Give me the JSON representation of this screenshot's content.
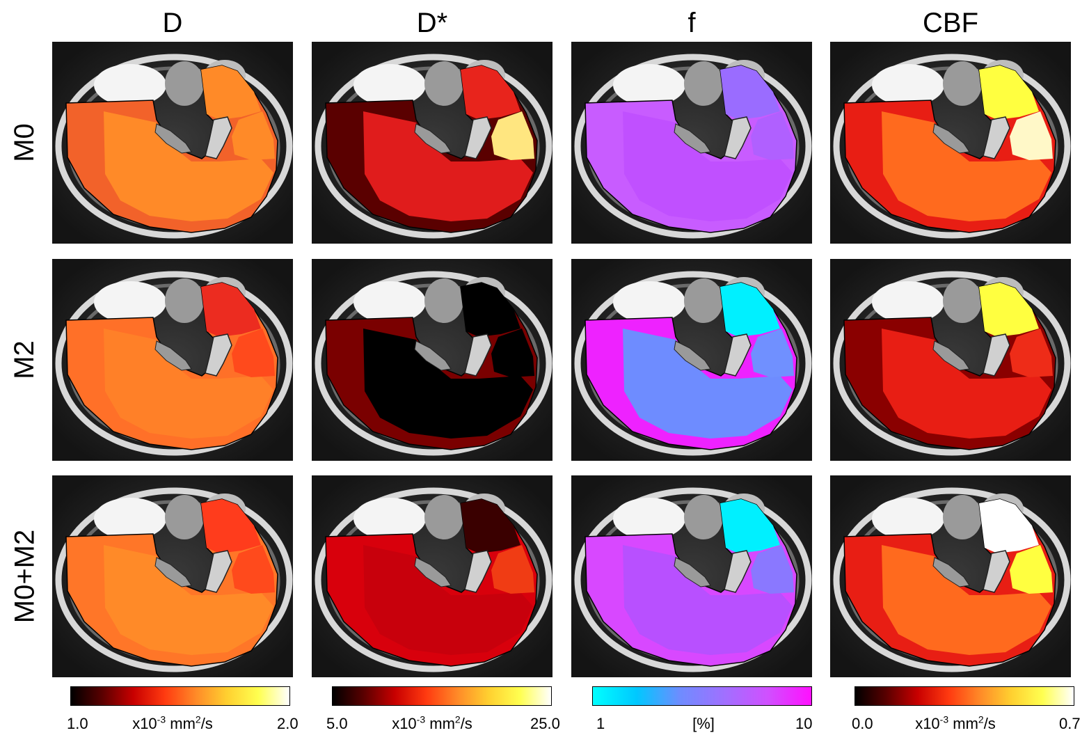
{
  "columns": [
    {
      "title": "D"
    },
    {
      "title": "D*"
    },
    {
      "title": "f"
    },
    {
      "title": "CBF"
    }
  ],
  "rows": [
    {
      "label": "M0"
    },
    {
      "label": "M2"
    },
    {
      "label": "M0+M2"
    }
  ],
  "colorbars": [
    {
      "min": "1.0",
      "max": "2.0",
      "unit_prefix": "x10",
      "unit_exp": "-3",
      "unit_mid": " mm",
      "unit_exp2": "2",
      "unit_suffix": "/s",
      "colormap": "hot"
    },
    {
      "min": "5.0",
      "max": "25.0",
      "unit_prefix": "x10",
      "unit_exp": "-3",
      "unit_mid": " mm",
      "unit_exp2": "2",
      "unit_suffix": "/s",
      "colormap": "hot"
    },
    {
      "min": "1",
      "max": "10",
      "unit_prefix": "[%]",
      "unit_exp": "",
      "unit_mid": "",
      "unit_exp2": "",
      "unit_suffix": "",
      "colormap": "cool"
    },
    {
      "min": "0.0",
      "max": "0.7",
      "unit_prefix": "x10",
      "unit_exp": "-3",
      "unit_mid": " mm",
      "unit_exp2": "2",
      "unit_suffix": "/s",
      "colormap": "hot"
    }
  ],
  "colors": {
    "hot_gradient": [
      "#000000",
      "#5a0000",
      "#c80000",
      "#ff3a10",
      "#ff8a28",
      "#ffd030",
      "#ffff50",
      "#ffffff"
    ],
    "cool_gradient": [
      "#00ffff",
      "#00c8ff",
      "#6f8cff",
      "#a070ff",
      "#d050ff",
      "#ff10ff"
    ]
  },
  "maps": [
    [
      {
        "outer": "#f2622a",
        "inner": "#ff8a28",
        "top": "#ff8a28",
        "lobe": "#ff8a28"
      },
      {
        "outer": "#5a0000",
        "inner": "#e01c1c",
        "top": "#e8241c",
        "lobe": "#ffe680"
      },
      {
        "outer": "#c85cff",
        "inner": "#c050ff",
        "top": "#9a6cff",
        "lobe": "#b060ff"
      },
      {
        "outer": "#e81e14",
        "inner": "#ff6a1e",
        "top": "#ffff40",
        "lobe": "#fff8c8"
      }
    ],
    [
      {
        "outer": "#ff7028",
        "inner": "#ff8028",
        "top": "#ec2c20",
        "lobe": "#ff4a1c"
      },
      {
        "outer": "#7a0000",
        "inner": "#000000",
        "top": "#000000",
        "lobe": "#000000"
      },
      {
        "outer": "#ee22ff",
        "inner": "#6e8cff",
        "top": "#00f0ff",
        "lobe": "#7090ff"
      },
      {
        "outer": "#8a0000",
        "inner": "#e81e14",
        "top": "#ffff40",
        "lobe": "#ee2c18"
      }
    ],
    [
      {
        "outer": "#ff7628",
        "inner": "#ff8a28",
        "top": "#ff3c1c",
        "lobe": "#ff4a1c"
      },
      {
        "outer": "#d8000c",
        "inner": "#c8000c",
        "top": "#3a0000",
        "lobe": "#f03c14"
      },
      {
        "outer": "#d848ff",
        "inner": "#b850ff",
        "top": "#00f0ff",
        "lobe": "#8a78ff"
      },
      {
        "outer": "#e81e14",
        "inner": "#ff6a1e",
        "top": "#ffffff",
        "lobe": "#ffff40"
      }
    ]
  ]
}
